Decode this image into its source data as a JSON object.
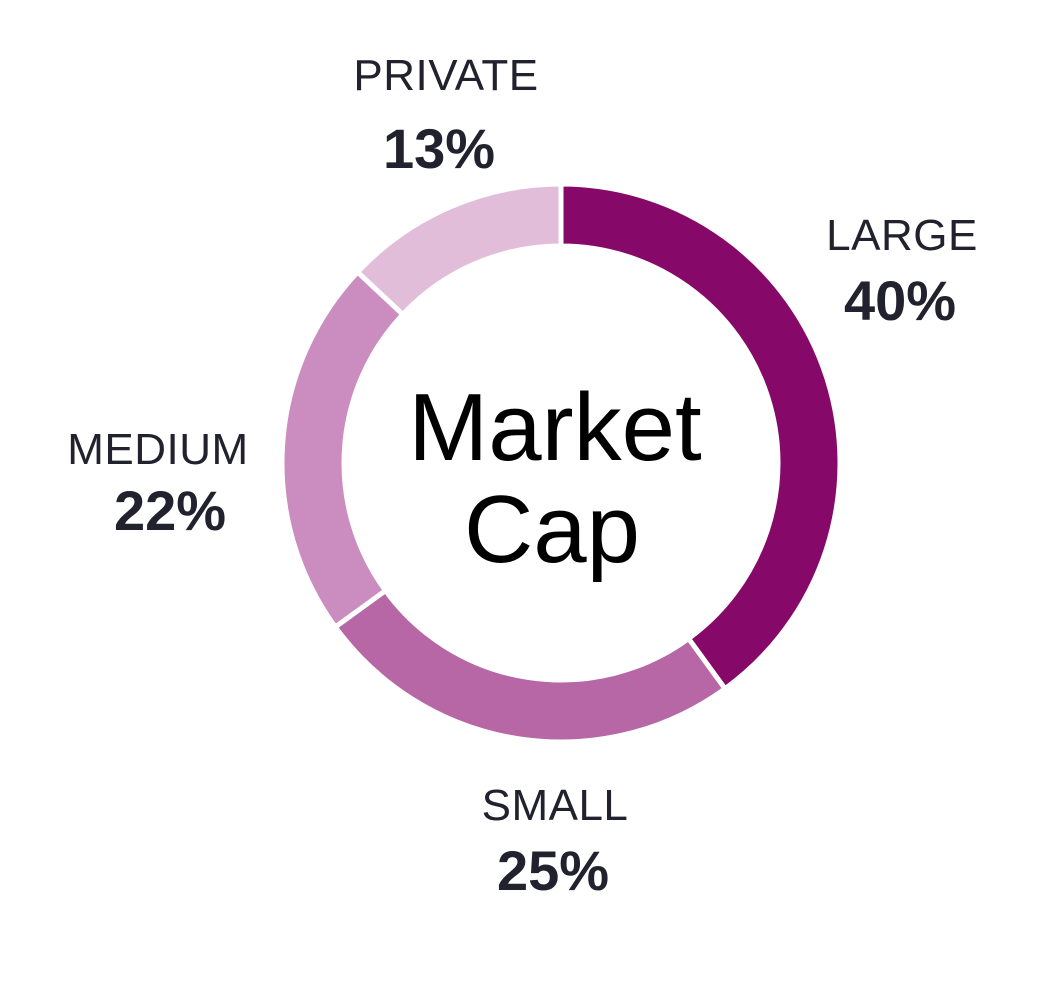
{
  "chart_data": {
    "type": "pie",
    "variant": "donut",
    "center_label": [
      "Market",
      "Cap"
    ],
    "start": "12 o'clock, clockwise",
    "slices": [
      {
        "label": "LARGE",
        "value": 40,
        "display": "40%",
        "color": "#860868"
      },
      {
        "label": "SMALL",
        "value": 25,
        "display": "25%",
        "color": "#b767a5"
      },
      {
        "label": "MEDIUM",
        "value": 22,
        "display": "22%",
        "color": "#cb8cbf"
      },
      {
        "label": "PRIVATE",
        "value": 13,
        "display": "13%",
        "color": "#e1bdd9"
      }
    ],
    "legend": "none"
  }
}
